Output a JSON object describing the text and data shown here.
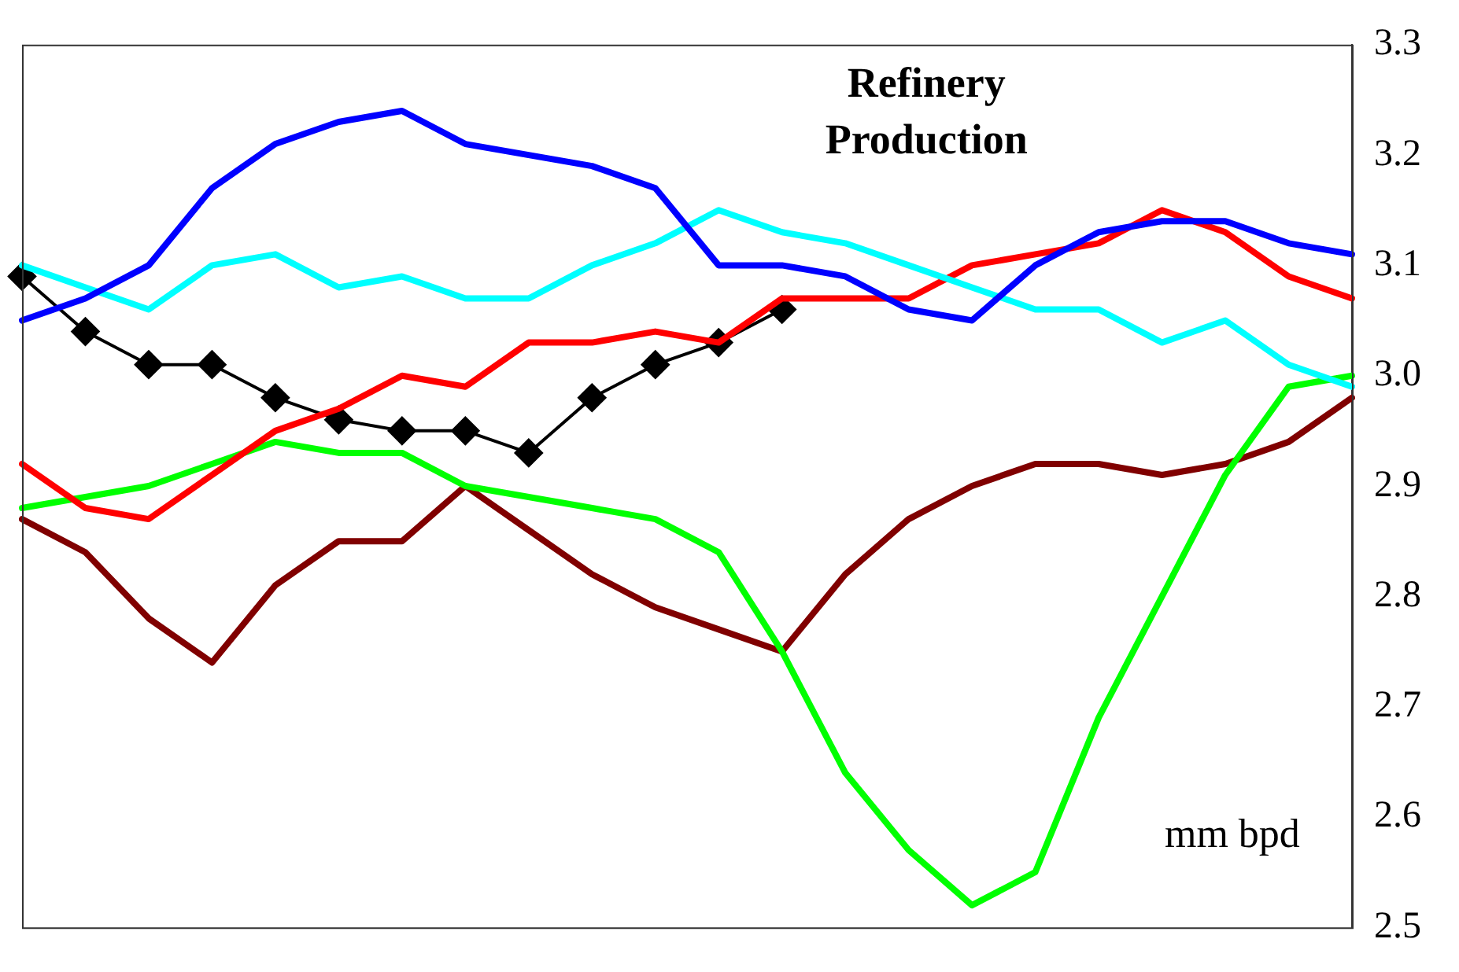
{
  "chart_data": {
    "type": "line",
    "title": "Refinery Production",
    "annotations": [
      "mm bpd"
    ],
    "categories": [
      null,
      null,
      null,
      null,
      null,
      null,
      null,
      null,
      null,
      null,
      null,
      null,
      null,
      null,
      null,
      null,
      null,
      null,
      null,
      null,
      null,
      null
    ],
    "ylim": [
      2.5,
      3.3
    ],
    "yticks": [
      {
        "value": 2.5,
        "label": "2.5"
      },
      {
        "value": 2.6,
        "label": "2.6"
      },
      {
        "value": 2.7,
        "label": "2.7"
      },
      {
        "value": 2.8,
        "label": "2.8"
      },
      {
        "value": 2.9,
        "label": "2.9"
      },
      {
        "value": 3.0,
        "label": "3.0"
      },
      {
        "value": 3.1,
        "label": "3.1"
      },
      {
        "value": 3.2,
        "label": "3.2"
      },
      {
        "value": 3.3,
        "label": "3.3"
      }
    ],
    "grid": false,
    "legend": false,
    "tick_labels": "y",
    "line_style": "solid",
    "series": [
      {
        "color": "#0000ff",
        "marker": "none",
        "values": [
          3.05,
          3.07,
          3.1,
          3.17,
          3.21,
          3.23,
          3.24,
          3.21,
          3.2,
          3.19,
          3.17,
          3.1,
          3.1,
          3.09,
          3.06,
          3.05,
          3.1,
          3.13,
          3.14,
          3.14,
          3.12,
          3.11
        ]
      },
      {
        "color": "#00ffff",
        "marker": "none",
        "values": [
          3.1,
          3.08,
          3.06,
          3.1,
          3.11,
          3.08,
          3.09,
          3.07,
          3.07,
          3.1,
          3.12,
          3.15,
          3.13,
          3.12,
          3.1,
          3.08,
          3.06,
          3.06,
          3.03,
          3.05,
          3.01,
          2.99
        ]
      },
      {
        "color": "#ff0000",
        "marker": "none",
        "values": [
          2.92,
          2.88,
          2.87,
          2.91,
          2.95,
          2.97,
          3.0,
          2.99,
          3.03,
          3.03,
          3.04,
          3.03,
          3.07,
          3.07,
          3.07,
          3.1,
          3.11,
          3.12,
          3.15,
          3.13,
          3.09,
          3.07
        ]
      },
      {
        "color": "#00ff00",
        "marker": "none",
        "values": [
          2.88,
          2.89,
          2.9,
          2.92,
          2.94,
          2.93,
          2.93,
          2.9,
          2.89,
          2.88,
          2.87,
          2.84,
          2.75,
          2.64,
          2.57,
          2.52,
          2.55,
          2.69,
          2.8,
          2.91,
          2.99,
          3.0
        ]
      },
      {
        "color": "#800000",
        "marker": "none",
        "values": [
          2.87,
          2.84,
          2.78,
          2.74,
          2.81,
          2.85,
          2.85,
          2.9,
          2.86,
          2.82,
          2.79,
          2.77,
          2.75,
          2.82,
          2.87,
          2.9,
          2.92,
          2.92,
          2.91,
          2.92,
          2.94,
          2.98
        ]
      },
      {
        "color": "#000000",
        "marker": "diamond",
        "values": [
          3.09,
          3.04,
          3.01,
          3.01,
          2.98,
          2.96,
          2.95,
          2.95,
          2.93,
          2.98,
          3.01,
          3.03,
          3.06,
          null,
          null,
          null,
          null,
          null,
          null,
          null,
          null,
          null
        ]
      }
    ]
  }
}
